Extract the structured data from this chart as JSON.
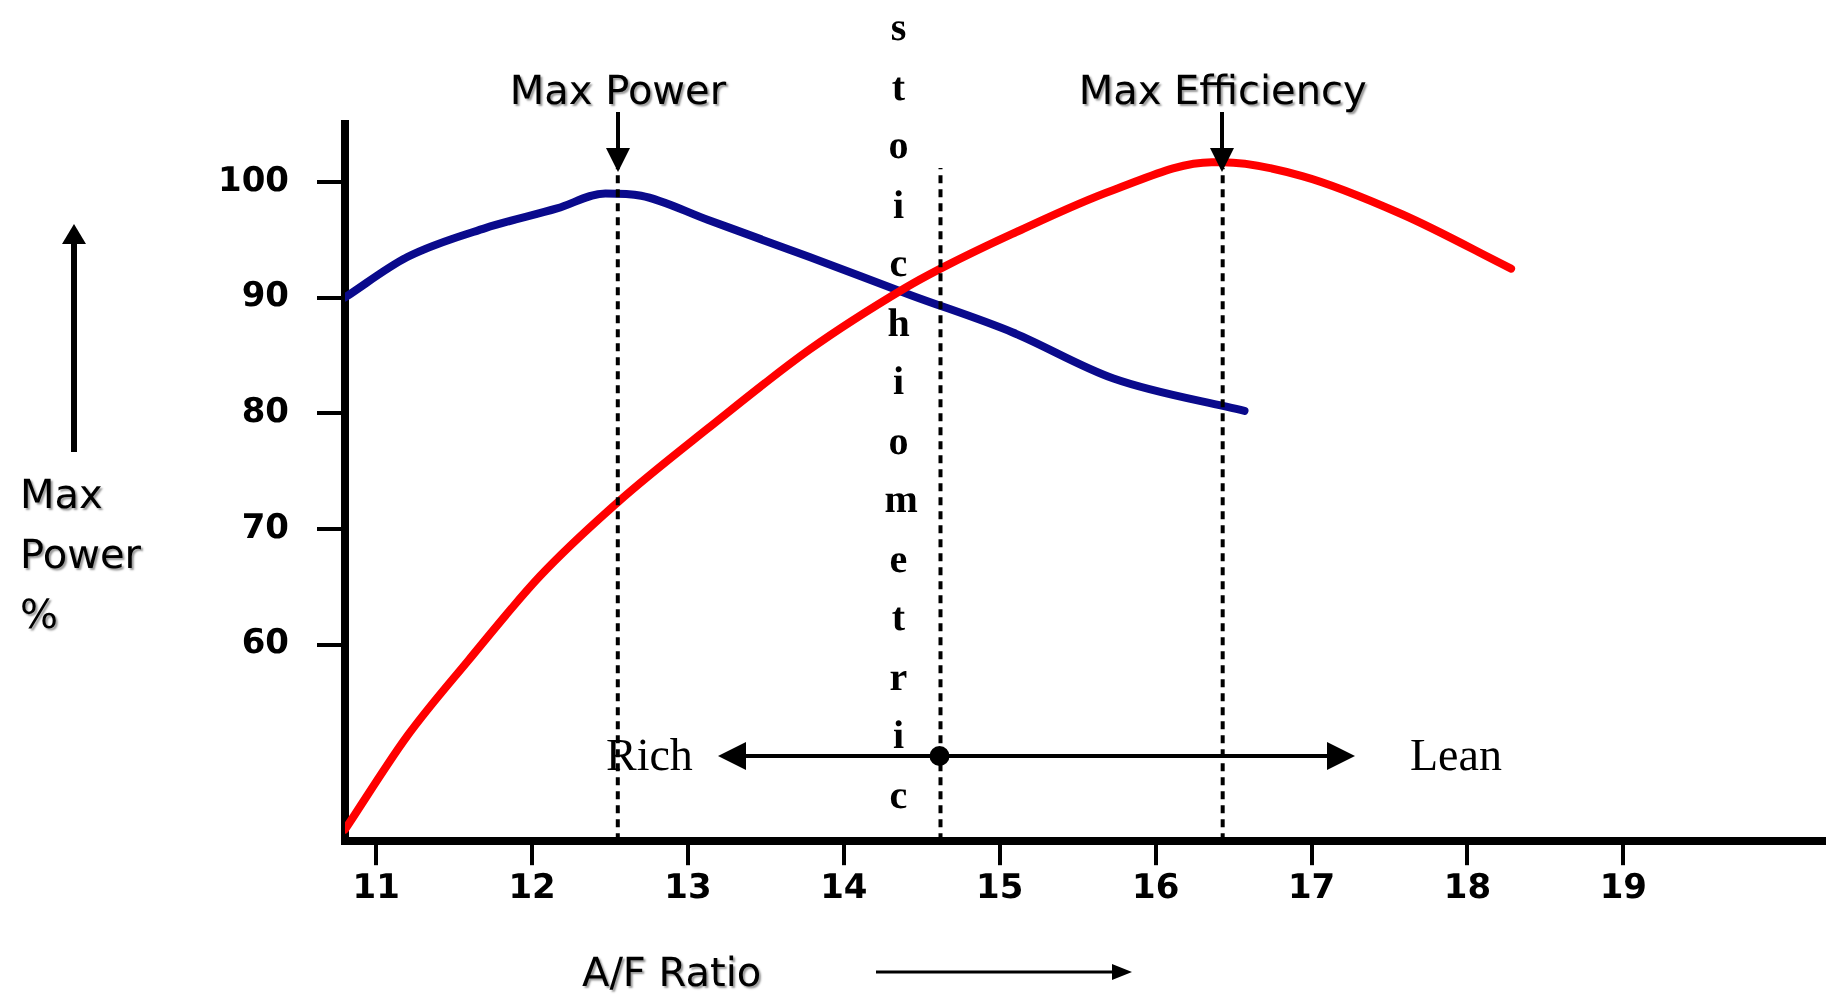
{
  "chart_data": {
    "type": "line",
    "xlabel": "A/F Ratio",
    "ylabel": "Max Power %",
    "xlim": [
      10.8,
      20.3
    ],
    "xticks": [
      11,
      12,
      13,
      14,
      15,
      16,
      17,
      18,
      19
    ],
    "ylim": [
      43,
      105
    ],
    "yticks": [
      60,
      70,
      80,
      90,
      100
    ],
    "grid": false,
    "legend": false,
    "marker": "none",
    "line_style": "solid",
    "series": [
      {
        "color": "#ff0000",
        "x": [
          10.8,
          11.2,
          11.59,
          12.05,
          12.55,
          13.13,
          13.78,
          14.39,
          14.62,
          15.08,
          15.73,
          16.36,
          16.43,
          16.94,
          17.58,
          18.28
        ],
        "values": [
          44,
          52.1,
          58.6,
          65.9,
          72.3,
          78.7,
          85.5,
          90.8,
          92.5,
          95.5,
          99.3,
          101.7,
          101.7,
          100.5,
          97.2,
          92.5
        ]
      },
      {
        "color": "#0a0a8c",
        "x": [
          10.8,
          11.2,
          11.7,
          12.16,
          12.47,
          12.7,
          13.13,
          13.78,
          14.43,
          15.08,
          15.73,
          16.57
        ],
        "values": [
          90,
          93.5,
          96,
          97.7,
          99,
          98.8,
          96.7,
          93.5,
          90.2,
          87,
          83,
          80.2
        ]
      }
    ],
    "ref_lines": [
      {
        "axis": "x",
        "value": 12.55,
        "label": "Max Power",
        "line_style": "dashed",
        "color": "#000000"
      },
      {
        "axis": "x",
        "value": 14.62,
        "label": "stoichiometric",
        "line_style": "dashed",
        "color": "#000000"
      },
      {
        "axis": "x",
        "value": 16.43,
        "label": "Max Efficiency",
        "line_style": "dashed",
        "color": "#000000"
      }
    ],
    "annotations": [
      "Rich",
      "Lean"
    ]
  }
}
